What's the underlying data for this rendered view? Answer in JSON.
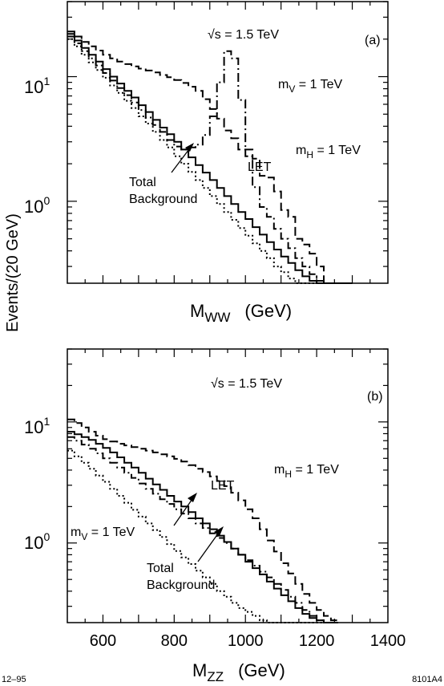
{
  "figure": {
    "ylabel": "Events/(20 GeV)",
    "footer_left": "12–95",
    "footer_right": "8101A4"
  },
  "chart_data": [
    {
      "type": "line",
      "panel_label": "(a)",
      "energy": "√s = 1.5 TeV",
      "xlabel": "M",
      "xlabel_sub": "WW",
      "xlabel_unit": "(GeV)",
      "xlim": [
        500,
        1400
      ],
      "ylim": [
        0.22,
        40
      ],
      "yscale": "log",
      "x_ticks": [
        600,
        800,
        1000,
        1200,
        1400
      ],
      "x_tick_labels": [],
      "y_tick_labels": [
        {
          "value": 10,
          "base": "10",
          "exp": "1"
        },
        {
          "value": 1,
          "base": "10",
          "exp": "0"
        }
      ],
      "annotations": {
        "mv_base": "m",
        "mv_sub": "V",
        "mv_rest": " = 1 TeV",
        "mh_base": "m",
        "mh_sub": "H",
        "mh_rest": " = 1 TeV",
        "let": "LET",
        "bg_line1": "Total",
        "bg_line2": "Background"
      },
      "x": [
        500,
        520,
        540,
        560,
        580,
        600,
        620,
        640,
        660,
        680,
        700,
        720,
        740,
        760,
        780,
        800,
        820,
        840,
        860,
        880,
        900,
        920,
        940,
        960,
        980,
        1000,
        1020,
        1040,
        1060,
        1080,
        1100,
        1120,
        1140,
        1160,
        1180,
        1200,
        1220,
        1240,
        1260,
        1280
      ],
      "series": [
        {
          "style": "dotted",
          "values": [
            20,
            17.5,
            15,
            13,
            11.3,
            9.8,
            8.5,
            7.4,
            6.4,
            5.6,
            4.8,
            4.2,
            3.6,
            3.1,
            2.7,
            2.3,
            2.0,
            1.72,
            1.48,
            1.28,
            1.1,
            0.95,
            0.82,
            0.71,
            0.61,
            0.53,
            0.46,
            0.4,
            0.35,
            0.3,
            0.27,
            0.24,
            0.22,
            0.22,
            0.22,
            0.22,
            0.22,
            0.22,
            0.22,
            0.22
          ]
        },
        {
          "style": "solid",
          "values": [
            22,
            19.5,
            17,
            15,
            13.2,
            11.5,
            10,
            8.8,
            7.7,
            6.8,
            5.9,
            5.2,
            4.5,
            3.9,
            3.45,
            3.0,
            2.6,
            2.25,
            1.95,
            1.7,
            1.48,
            1.28,
            1.1,
            0.95,
            0.82,
            0.72,
            0.62,
            0.54,
            0.47,
            0.41,
            0.36,
            0.32,
            0.28,
            0.25,
            0.23,
            0.22,
            0.22,
            0.22,
            0.22,
            0.22
          ]
        },
        {
          "style": "dashdot",
          "values": [
            21,
            18.5,
            16,
            14,
            12.3,
            10.7,
            9.3,
            8.1,
            7.1,
            6.2,
            5.4,
            4.7,
            4.1,
            3.6,
            3.1,
            2.75,
            2.6,
            2.7,
            2.85,
            3.4,
            4.8,
            9,
            16,
            14,
            6.5,
            2.3,
            1.3,
            0.9,
            0.75,
            0.6,
            0.5,
            0.42,
            0.35,
            0.3,
            0.26,
            0.23,
            0.22,
            0.22,
            0.22,
            0.22
          ]
        },
        {
          "style": "dashed",
          "values": [
            23,
            21,
            19,
            17.5,
            16.2,
            15,
            14,
            13.2,
            12.6,
            12.1,
            11.6,
            11.2,
            10.8,
            10.3,
            9.9,
            9.4,
            8.9,
            8.3,
            7.7,
            6.6,
            5.5,
            4.6,
            3.7,
            3.2,
            2.6,
            2.6,
            2.2,
            1.6,
            1.55,
            1.2,
            0.85,
            0.75,
            0.5,
            0.45,
            0.38,
            0.3,
            0.22,
            0.22,
            0.22,
            0.22
          ]
        }
      ]
    },
    {
      "type": "line",
      "panel_label": "(b)",
      "energy": "√s = 1.5 TeV",
      "xlabel": "M",
      "xlabel_sub": "ZZ",
      "xlabel_unit": "(GeV)",
      "xlim": [
        500,
        1400
      ],
      "ylim": [
        0.22,
        40
      ],
      "yscale": "log",
      "x_ticks": [
        600,
        800,
        1000,
        1200,
        1400
      ],
      "x_tick_labels": [
        "600",
        "800",
        "1000",
        "1200",
        "1400"
      ],
      "y_tick_labels": [
        {
          "value": 10,
          "base": "10",
          "exp": "1"
        },
        {
          "value": 1,
          "base": "10",
          "exp": "0"
        }
      ],
      "annotations": {
        "mh_base": "m",
        "mh_sub": "H",
        "mh_rest": " = 1 TeV",
        "let": "LET",
        "mv_base": "m",
        "mv_sub": "V",
        "mv_rest": " = 1 TeV",
        "bg_line1": "Total",
        "bg_line2": "Background"
      },
      "x": [
        500,
        520,
        540,
        560,
        580,
        600,
        620,
        640,
        660,
        680,
        700,
        720,
        740,
        760,
        780,
        800,
        820,
        840,
        860,
        880,
        900,
        920,
        940,
        960,
        980,
        1000,
        1020,
        1040,
        1060,
        1080,
        1100,
        1120,
        1140,
        1160,
        1180,
        1200,
        1220,
        1240
      ],
      "series": [
        {
          "style": "dotted",
          "values": [
            5.8,
            5.2,
            4.6,
            4.1,
            3.6,
            3.2,
            2.8,
            2.45,
            2.15,
            1.88,
            1.65,
            1.45,
            1.28,
            1.12,
            0.98,
            0.86,
            0.76,
            0.67,
            0.59,
            0.52,
            0.46,
            0.4,
            0.36,
            0.32,
            0.29,
            0.27,
            0.25,
            0.23,
            0.22,
            0.22,
            0.22,
            0.22,
            0.22,
            0.22,
            0.22,
            0.22,
            0.22,
            0.22
          ]
        },
        {
          "style": "dashdot",
          "values": [
            7.5,
            7.0,
            6.5,
            6.0,
            5.5,
            5.0,
            4.6,
            4.2,
            3.8,
            3.45,
            3.1,
            2.8,
            2.55,
            2.3,
            2.1,
            1.9,
            1.75,
            1.6,
            1.45,
            1.33,
            1.2,
            1.1,
            1.0,
            0.9,
            0.8,
            0.72,
            0.65,
            0.58,
            0.52,
            0.46,
            0.41,
            0.36,
            0.32,
            0.28,
            0.25,
            0.23,
            0.22,
            0.22
          ]
        },
        {
          "style": "solid",
          "values": [
            8.3,
            7.9,
            7.5,
            7.1,
            6.6,
            6.1,
            5.6,
            5.1,
            4.6,
            4.2,
            3.8,
            3.4,
            3.05,
            2.75,
            2.45,
            2.2,
            2.0,
            1.8,
            1.6,
            1.45,
            1.3,
            1.15,
            1.02,
            0.9,
            0.8,
            0.7,
            0.62,
            0.55,
            0.48,
            0.42,
            0.37,
            0.33,
            0.29,
            0.26,
            0.24,
            0.23,
            0.22,
            0.22
          ]
        },
        {
          "style": "dashed",
          "values": [
            10.5,
            9.8,
            9.0,
            8.3,
            7.7,
            7.2,
            6.9,
            6.6,
            6.4,
            6.2,
            6.0,
            5.8,
            5.6,
            5.4,
            5.2,
            4.95,
            4.7,
            4.4,
            4.1,
            3.85,
            3.55,
            3.25,
            2.95,
            2.6,
            2.25,
            1.9,
            1.6,
            1.3,
            1.05,
            0.85,
            0.68,
            0.56,
            0.46,
            0.38,
            0.32,
            0.28,
            0.25,
            0.23
          ]
        }
      ]
    }
  ]
}
